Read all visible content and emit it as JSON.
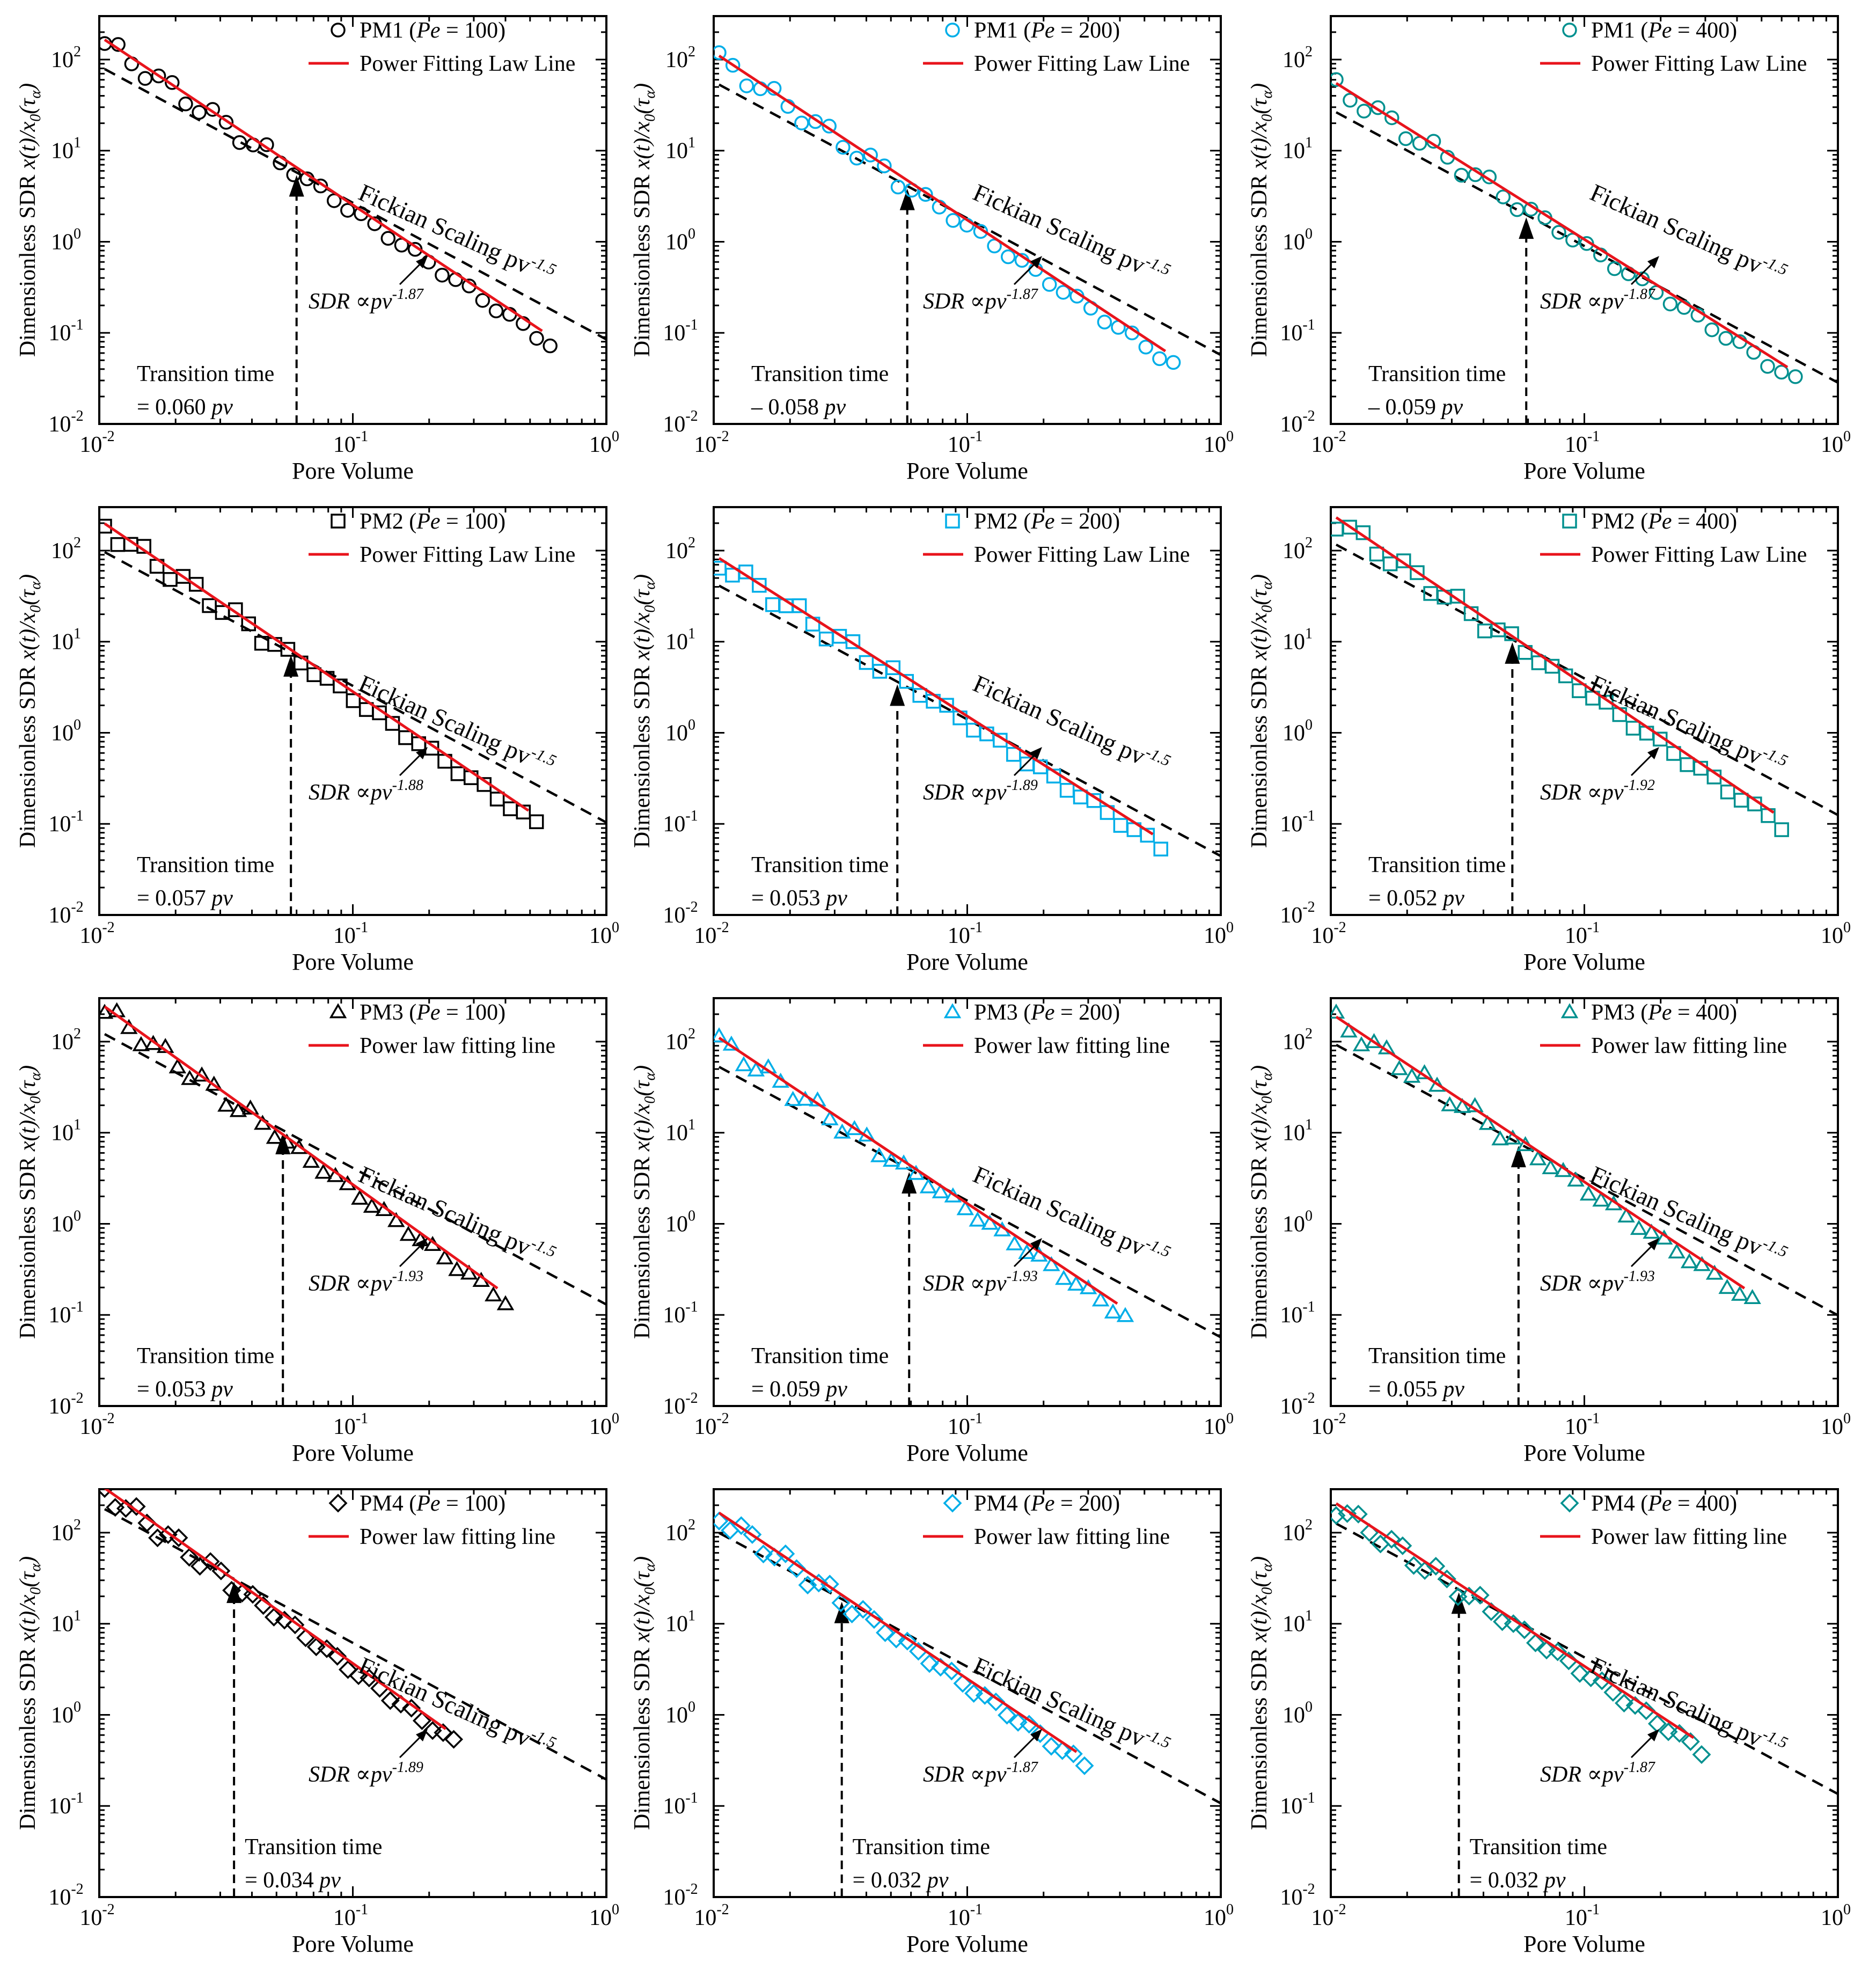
{
  "colors": {
    "black": "#000000",
    "cyan": "#00aee8",
    "teal": "#00908f",
    "fit": "#e8141c"
  },
  "axes": {
    "xlabel": "Pore Volume",
    "ylabel": "Dimensionless SDR x(t)/x0(τα)",
    "xscale": "log",
    "yscale": "log",
    "xlim": [
      0.01,
      1
    ],
    "ylim": [
      0.01,
      300
    ],
    "xticks": [
      "10",
      "10"
    ],
    "xtick_exp": [
      "-2",
      "-1",
      "0"
    ],
    "ytick_exp": [
      "-2",
      "-1",
      "0",
      "1",
      "2"
    ]
  },
  "fickian_label": "Fickian Scaling pv",
  "fickian_exp": "-1.5",
  "sdr_prefix": "SDR ∝pv",
  "transition_label": "Transition time",
  "chart_data": [
    {
      "type": "scatter",
      "medium": "PM1",
      "pe": "100",
      "marker": "circle",
      "color": "black",
      "legend_marker": "PM1 (",
      "legend_pe": "Pe",
      "legend_val": " = 100)",
      "fit_label": "Power Fitting Law Line",
      "exponent": "-1.87",
      "transition": "= 0.060",
      "tval": 0.06,
      "x_end": 0.6,
      "y_start": 150,
      "y_end": 0.075
    },
    {
      "type": "scatter",
      "medium": "PM1",
      "pe": "200",
      "marker": "circle",
      "color": "cyan",
      "legend_marker": "PM1 (",
      "legend_pe": "Pe",
      "legend_val": " = 200)",
      "fit_label": "Power Fitting Law Line",
      "exponent": "-1.87",
      "transition": "– 0.058",
      "tval": 0.058,
      "x_end": 0.65,
      "y_start": 100,
      "y_end": 0.045
    },
    {
      "type": "scatter",
      "medium": "PM1",
      "pe": "400",
      "marker": "circle",
      "color": "teal",
      "legend_marker": "PM1 (",
      "legend_pe": "Pe",
      "legend_val": " = 400)",
      "fit_label": "Power Fitting Law Line",
      "exponent": "-1.87",
      "transition": "– 0.059",
      "tval": 0.059,
      "x_end": 0.68,
      "y_start": 50,
      "y_end": 0.03
    },
    {
      "type": "scatter",
      "medium": "PM2",
      "pe": "100",
      "marker": "square",
      "color": "black",
      "legend_marker": "PM2 (",
      "legend_pe": "Pe",
      "legend_val": " = 100)",
      "fit_label": "Power Fitting Law Line",
      "exponent": "-1.88",
      "transition": "= 0.057",
      "tval": 0.057,
      "x_end": 0.53,
      "y_start": 180,
      "y_end": 0.1
    },
    {
      "type": "scatter",
      "medium": "PM2",
      "pe": "200",
      "marker": "square",
      "color": "cyan",
      "legend_marker": "PM2 (",
      "legend_pe": "Pe",
      "legend_val": " = 200)",
      "fit_label": "Power Fitting Law Line",
      "exponent": "-1.89",
      "transition": "= 0.053",
      "tval": 0.053,
      "x_end": 0.58,
      "y_start": 75,
      "y_end": 0.055
    },
    {
      "type": "scatter",
      "medium": "PM2",
      "pe": "400",
      "marker": "square",
      "color": "teal",
      "legend_marker": "PM2 (",
      "legend_pe": "Pe",
      "legend_val": " = 400)",
      "fit_label": "Power Fitting Law Line",
      "exponent": "-1.92",
      "transition": "= 0.052",
      "tval": 0.052,
      "x_end": 0.6,
      "y_start": 210,
      "y_end": 0.095
    },
    {
      "type": "scatter",
      "medium": "PM3",
      "pe": "100",
      "marker": "triangle",
      "color": "black",
      "legend_marker": "PM3 (",
      "legend_pe": "Pe",
      "legend_val": " = 100)",
      "fit_label": "Power law fitting line",
      "exponent": "-1.93",
      "transition": "= 0.053",
      "tval": 0.053,
      "x_end": 0.4,
      "y_start": 220,
      "y_end": 0.14
    },
    {
      "type": "scatter",
      "medium": "PM3",
      "pe": "200",
      "marker": "triangle",
      "color": "cyan",
      "legend_marker": "PM3 (",
      "legend_pe": "Pe",
      "legend_val": " = 200)",
      "fit_label": "Power law fitting line",
      "exponent": "-1.93",
      "transition": "= 0.059",
      "tval": 0.059,
      "x_end": 0.42,
      "y_start": 100,
      "y_end": 0.095
    },
    {
      "type": "scatter",
      "medium": "PM3",
      "pe": "400",
      "marker": "triangle",
      "color": "teal",
      "legend_marker": "PM3 (",
      "legend_pe": "Pe",
      "legend_val": " = 400)",
      "fit_label": "Power law fitting line",
      "exponent": "-1.93",
      "transition": "= 0.055",
      "tval": 0.055,
      "x_end": 0.46,
      "y_start": 170,
      "y_end": 0.14
    },
    {
      "type": "scatter",
      "medium": "PM4",
      "pe": "100",
      "marker": "diamond",
      "color": "black",
      "legend_marker": "PM4 (",
      "legend_pe": "Pe",
      "legend_val": " = 100)",
      "fit_label": "Power law fitting line",
      "exponent": "-1.89",
      "transition": "= 0.034",
      "tval": 0.034,
      "x_end": 0.25,
      "y_start": 280,
      "y_end": 0.5
    },
    {
      "type": "scatter",
      "medium": "PM4",
      "pe": "200",
      "marker": "diamond",
      "color": "cyan",
      "legend_marker": "PM4 (",
      "legend_pe": "Pe",
      "legend_val": " = 200)",
      "fit_label": "Power law fitting line",
      "exponent": "-1.87",
      "transition": "= 0.032",
      "tval": 0.032,
      "x_end": 0.29,
      "y_start": 150,
      "y_end": 0.28
    },
    {
      "type": "scatter",
      "medium": "PM4",
      "pe": "400",
      "marker": "diamond",
      "color": "teal",
      "legend_marker": "PM4 (",
      "legend_pe": "Pe",
      "legend_val": " = 400)",
      "fit_label": "Power law fitting line",
      "exponent": "-1.87",
      "transition": "= 0.032",
      "tval": 0.032,
      "x_end": 0.29,
      "y_start": 190,
      "y_end": 0.4
    }
  ]
}
